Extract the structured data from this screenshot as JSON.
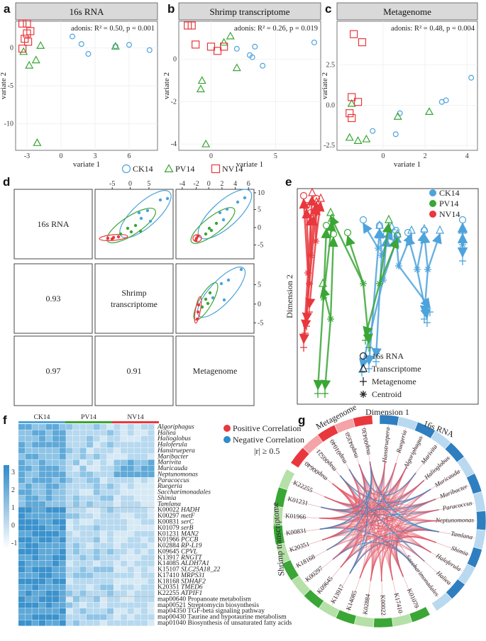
{
  "colors": {
    "ck14": "#4da3dc",
    "pv14": "#3aa635",
    "nv14": "#e8383d",
    "strip": "#d9d9d9"
  },
  "panels_abc": [
    {
      "letter": "a",
      "title": "16s RNA",
      "stat": "adonis: R² = 0.50, p = 0.001",
      "xlabel": "variate 1",
      "ylabel": "variate 2",
      "xticks": [
        "-3",
        "0",
        "3",
        "6"
      ],
      "yticks": [
        "0",
        "-5",
        "-10"
      ]
    },
    {
      "letter": "b",
      "title": "Shrimp transcriptome",
      "stat": "adonis: R² = 0.26, p = 0.019",
      "xlabel": "variate 1",
      "ylabel": "variate 2",
      "xticks": [
        "0",
        "5"
      ],
      "yticks": [
        "0",
        "-2",
        "-4"
      ]
    },
    {
      "letter": "c",
      "title": "Metagenome",
      "stat": "adonis: R² = 0.48, p = 0.004",
      "xlabel": "variate 1",
      "ylabel": "variate 2",
      "xticks": [
        "0",
        "2",
        "4"
      ],
      "yticks": [
        "2.5",
        "0.0",
        "-2.5"
      ]
    }
  ],
  "legend_abc": [
    "CK14",
    "PV14",
    "NV14"
  ],
  "panel_d": {
    "letter": "d",
    "labels": [
      "16s RNA",
      "Shrimp",
      "transcriptome",
      "Metagenome"
    ],
    "corr": [
      "0.93",
      "0.97",
      "0.91"
    ],
    "top_ticks_a": [
      "-5",
      "0",
      "5"
    ],
    "top_ticks_b": [
      "-4",
      "-2",
      "0",
      "2",
      "4",
      "6"
    ],
    "right_ticks_a": [
      "10",
      "5",
      "0",
      "-5"
    ],
    "right_ticks_b": [
      "5",
      "0",
      "-5"
    ]
  },
  "panel_e": {
    "letter": "e",
    "legend_groups": [
      "CK14",
      "PV14",
      "NV14"
    ],
    "legend_shapes": [
      "16s RNA",
      "Transcriptome",
      "Metagenome",
      "Centroid"
    ],
    "xlabel": "Dimension 1",
    "ylabel": "Dimension 2"
  },
  "panel_f": {
    "letter": "f",
    "groups": [
      "CK14",
      "PV14",
      "NV14"
    ],
    "legend_pos": "Positive Correlation",
    "legend_neg": "Negative Correlation",
    "threshold": "|r| ≥ 0.5",
    "scale": [
      "3",
      "2",
      "1",
      "0",
      "-1"
    ],
    "genera": [
      "Algoriphagus",
      "Haliea",
      "Halioglobus",
      "Haloferula",
      "Hanstruepera",
      "Maribacter",
      "Marivita",
      "Muricauda",
      "Neptunomonas",
      "Paracoccus",
      "Ruegeria",
      "Saccharimonadales",
      "Shimia",
      "Tamlana"
    ],
    "genes": [
      [
        "K00022",
        "HADH"
      ],
      [
        "K00297",
        "metF"
      ],
      [
        "K00831",
        "serC"
      ],
      [
        "K01079",
        "serB"
      ],
      [
        "K01231",
        "MAN2"
      ],
      [
        "K01966",
        "PCCB"
      ],
      [
        "K02884",
        "RP-L19"
      ],
      [
        "K09645",
        "CPVL"
      ],
      [
        "K13917",
        "RNGTT"
      ],
      [
        "K14085",
        "ALDH7A1"
      ],
      [
        "K15107",
        "SLC25A18_22"
      ],
      [
        "K17410",
        "MRPS31"
      ],
      [
        "K18168",
        "SDHAF2"
      ],
      [
        "K20351",
        "TMED6"
      ],
      [
        "K22255",
        "ATPIF1"
      ]
    ],
    "pathways": [
      "map00640 Propanoate metabolism",
      "map00521 Streptomycin biosynthesis",
      "map04350 TGF-beta signaling pathway",
      "map00430 Taurine and hypotaurine metabolism",
      "map01040 Biosynthesis of unsaturated fatty acids"
    ]
  },
  "panel_g": {
    "letter": "g",
    "sectors": [
      "Metagenome",
      "16s RNA",
      "Shrimp transcriptome"
    ],
    "meta_labels": [
      "map00640",
      "map00521",
      "map01040",
      "map04350",
      "map00430"
    ],
    "rna_labels": [
      "Hanstruepera",
      "Ruegeria",
      "Algoriphagus",
      "Marivita",
      "Halioglobus",
      "Muricauda",
      "Maribacter",
      "Paracoccus",
      "Neptunomonas",
      "Tamlana",
      "Shimia",
      "Haloferula",
      "Haliea",
      "Saccharimonadales"
    ],
    "tx_labels": [
      "K01079",
      "K17410",
      "K00022",
      "K02884",
      "K14085",
      "K13917",
      "K09645",
      "K00297",
      "K18168",
      "K20351",
      "K00831",
      "K01966",
      "K01231",
      "K22255"
    ]
  }
}
